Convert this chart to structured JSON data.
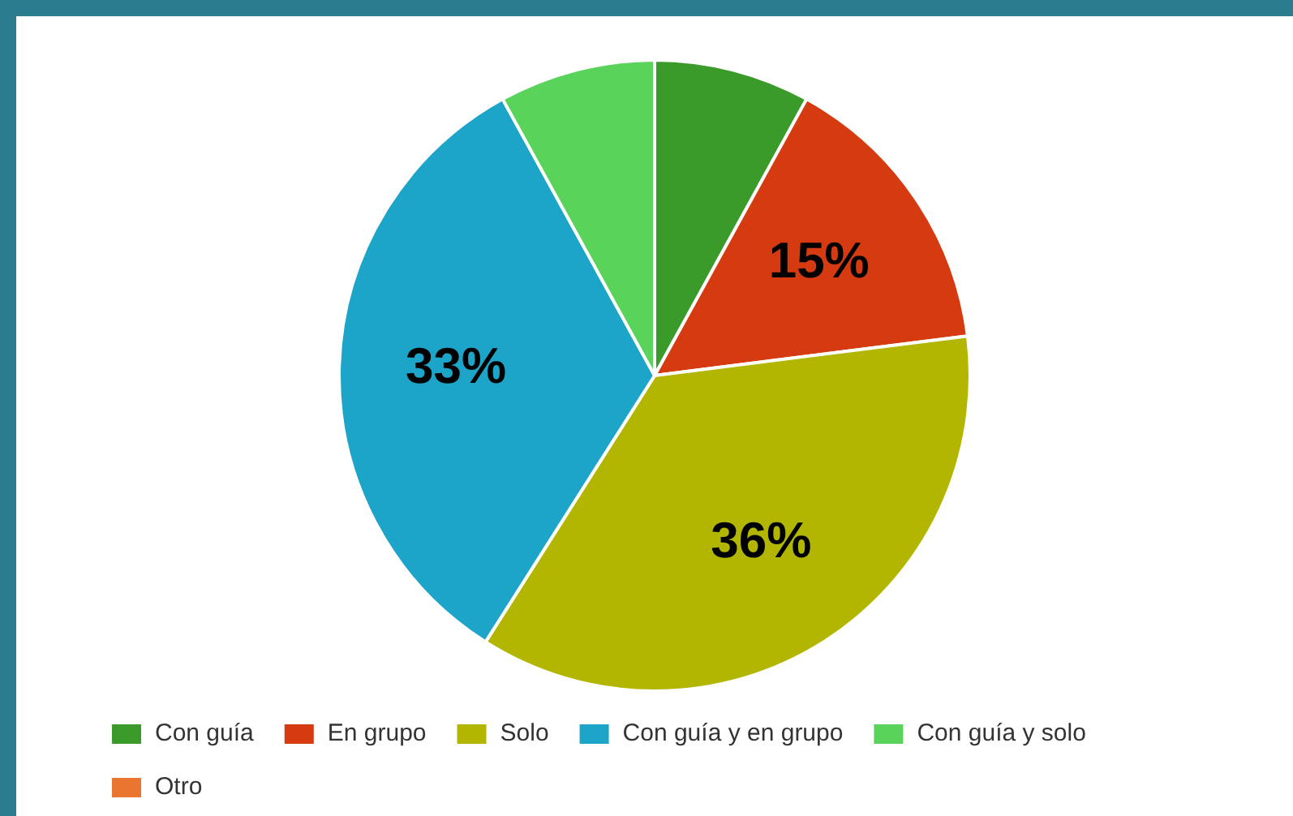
{
  "chart_data": {
    "type": "pie",
    "categories": [
      "Con guía",
      "En grupo",
      "Solo",
      "Con guía y en grupo",
      "Con guía y solo",
      "Otro"
    ],
    "values": [
      8,
      15,
      36,
      33,
      8,
      0
    ],
    "colors": [
      "#3a9a2a",
      "#d63a10",
      "#b3b600",
      "#1ca4c9",
      "#5ad35a",
      "#ea7530"
    ],
    "value_labels": [
      null,
      "15%",
      "36%",
      "33%",
      null,
      null
    ],
    "legend": "bottom"
  }
}
